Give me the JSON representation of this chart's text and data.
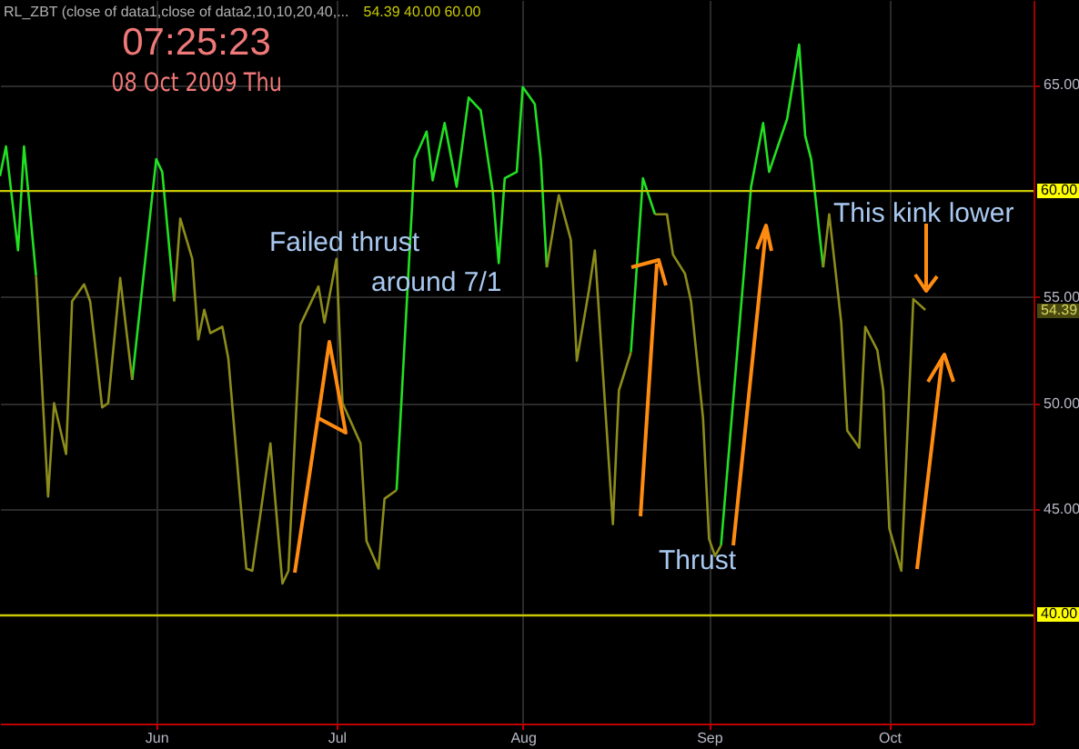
{
  "chart_data": {
    "type": "line",
    "title": "RL_ZBT (close of data1,close of data2,10,10,20,40,...",
    "subtitle": "54.39 40.00 60.00",
    "x": [
      "2009-05-06",
      "2009-05-07",
      "2009-05-09",
      "2009-05-10",
      "2009-05-12",
      "2009-05-14",
      "2009-05-15",
      "2009-05-17",
      "2009-05-18",
      "2009-05-20",
      "2009-05-21",
      "2009-05-23",
      "2009-05-24",
      "2009-05-26",
      "2009-05-28",
      "2009-06-01",
      "2009-06-02",
      "2009-06-04",
      "2009-06-05",
      "2009-06-07",
      "2009-06-08",
      "2009-06-09",
      "2009-06-10",
      "2009-06-12",
      "2009-06-13",
      "2009-06-15",
      "2009-06-16",
      "2009-06-17",
      "2009-06-20",
      "2009-06-22",
      "2009-06-23",
      "2009-06-25",
      "2009-06-28",
      "2009-06-29",
      "2009-07-01",
      "2009-07-02",
      "2009-07-05",
      "2009-07-06",
      "2009-07-08",
      "2009-07-09",
      "2009-07-11",
      "2009-07-14",
      "2009-07-16",
      "2009-07-17",
      "2009-07-19",
      "2009-07-21",
      "2009-07-23",
      "2009-07-25",
      "2009-07-27",
      "2009-07-28",
      "2009-07-29",
      "2009-07-31",
      "2009-08-01",
      "2009-08-03",
      "2009-08-04",
      "2009-08-05",
      "2009-08-07",
      "2009-08-09",
      "2009-08-10",
      "2009-08-12",
      "2009-08-13",
      "2009-08-16",
      "2009-08-17",
      "2009-08-19",
      "2009-08-21",
      "2009-08-23",
      "2009-08-25",
      "2009-08-26",
      "2009-08-28",
      "2009-08-29",
      "2009-08-31",
      "2009-09-01",
      "2009-09-02",
      "2009-09-03",
      "2009-09-08",
      "2009-09-10",
      "2009-09-11",
      "2009-09-14",
      "2009-09-16",
      "2009-09-17",
      "2009-09-18",
      "2009-09-20",
      "2009-09-21",
      "2009-09-23",
      "2009-09-24",
      "2009-09-26",
      "2009-09-27",
      "2009-09-29",
      "2009-09-30",
      "2009-10-01",
      "2009-10-03",
      "2009-10-05",
      "2009-10-07"
    ],
    "series": [
      {
        "color": "#22e022",
        "values": [
          60.7,
          62.1,
          57.2,
          62.1,
          56.0,
          null,
          null,
          null,
          null,
          null,
          null,
          null,
          null,
          null,
          51.1,
          61.5,
          60.9,
          54.8,
          null,
          null,
          null,
          null,
          null,
          null,
          null,
          null,
          null,
          null,
          null,
          null,
          null,
          null,
          null,
          null,
          null,
          null,
          null,
          null,
          null,
          null,
          45.9,
          61.5,
          62.8,
          60.5,
          63.2,
          60.2,
          64.4,
          63.8,
          60.0,
          56.6,
          60.6,
          60.9,
          64.9,
          64.1,
          61.5,
          56.4,
          null,
          null,
          null,
          null,
          null,
          null,
          null,
          52.4,
          60.6,
          58.9,
          null,
          null,
          null,
          null,
          null,
          null,
          null,
          43.3,
          60.2,
          63.2,
          60.9,
          63.4,
          66.9,
          62.6,
          61.5,
          56.4,
          null,
          null,
          null,
          null,
          null,
          null,
          null,
          null,
          null,
          null,
          null
        ]
      },
      {
        "color": "#8c8c1c",
        "values": [
          null,
          null,
          null,
          null,
          56.0,
          45.6,
          50.0,
          47.6,
          54.8,
          55.6,
          54.8,
          49.8,
          50.0,
          55.9,
          51.1,
          null,
          null,
          54.8,
          58.7,
          56.8,
          53.0,
          54.4,
          53.3,
          53.6,
          52.1,
          45.4,
          42.2,
          42.1,
          48.1,
          41.5,
          42.1,
          53.7,
          55.5,
          53.8,
          56.8,
          50.0,
          48.1,
          43.5,
          42.2,
          45.5,
          45.9,
          null,
          null,
          null,
          null,
          null,
          null,
          null,
          null,
          null,
          null,
          null,
          null,
          null,
          null,
          56.4,
          59.8,
          57.7,
          52.0,
          55.3,
          57.2,
          44.3,
          50.6,
          52.4,
          null,
          58.9,
          58.9,
          57.0,
          56.1,
          54.8,
          49.3,
          43.6,
          42.8,
          43.3,
          null,
          null,
          null,
          null,
          null,
          null,
          null,
          56.4,
          58.9,
          53.8,
          48.7,
          47.9,
          53.6,
          52.5,
          50.6,
          44.1,
          42.1,
          54.9,
          54.39
        ]
      }
    ],
    "xlim": [
      "2009-05-06",
      "2009-10-25"
    ],
    "xticks": [
      {
        "value": "2009-06-01",
        "label": "Jun"
      },
      {
        "value": "2009-07-01",
        "label": "Jul"
      },
      {
        "value": "2009-08-01",
        "label": "Aug"
      },
      {
        "value": "2009-09-01",
        "label": "Sep"
      },
      {
        "value": "2009-10-01",
        "label": "Oct"
      }
    ],
    "ylim": [
      34.9,
      69
    ],
    "yticks": [
      {
        "value": 45,
        "label": "45.00"
      },
      {
        "value": 50,
        "label": "50.00"
      },
      {
        "value": 55,
        "label": "55.00"
      },
      {
        "value": 65,
        "label": "65.00"
      }
    ],
    "ref_lines": [
      {
        "axis": "y",
        "value": 60,
        "label": "60.00",
        "color": "#c8c800"
      },
      {
        "axis": "y",
        "value": 40,
        "label": "40.00",
        "color": "#c8c800"
      }
    ],
    "grid": true,
    "annotations": [
      "07:25:23",
      "08 Oct 2009 Thu",
      "Failed thrust",
      "around 7/1",
      "This kink lower",
      "Thrust",
      {
        "text": "54.39",
        "y": 54.39
      }
    ]
  }
}
